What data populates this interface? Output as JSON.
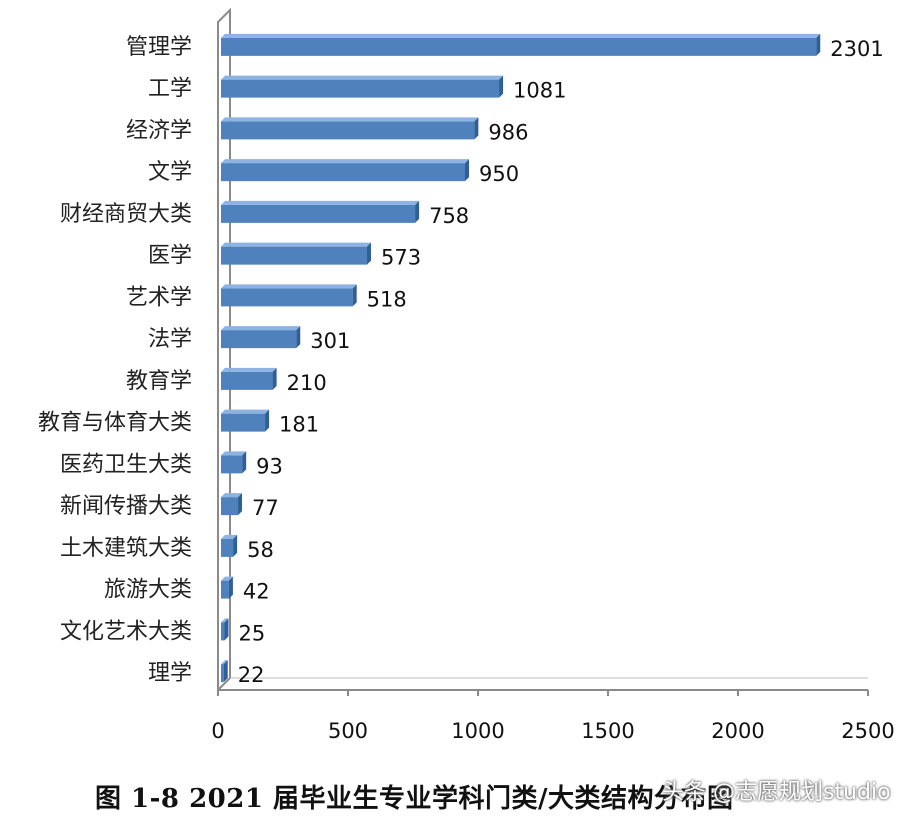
{
  "chart_data": {
    "type": "bar",
    "orientation": "horizontal",
    "categories": [
      "管理学",
      "工学",
      "经济学",
      "文学",
      "财经商贸大类",
      "医学",
      "艺术学",
      "法学",
      "教育学",
      "教育与体育大类",
      "医药卫生大类",
      "新闻传播大类",
      "土木建筑大类",
      "旅游大类",
      "文化艺术大类",
      "理学"
    ],
    "values": [
      2301,
      1081,
      986,
      950,
      758,
      573,
      518,
      301,
      210,
      181,
      93,
      77,
      58,
      42,
      25,
      22
    ],
    "value_labels": [
      "2301",
      "1081",
      "986",
      "950",
      "758",
      "573",
      "518",
      "301",
      "210",
      "181",
      "93",
      "77",
      "58",
      "42",
      "25",
      "22"
    ],
    "xticks": [
      "0",
      "500",
      "1000",
      "1500",
      "2000",
      "2500"
    ],
    "xlim": [
      0,
      2500
    ],
    "grid": false,
    "bar_color": "#4f81bd",
    "bar_top_color": "#8db3e2",
    "bar_side_color": "#2f5f98"
  },
  "caption": "图 1-8    2021 届毕业生专业学科门类/大类结构分布图",
  "watermark": "头条 @志愿规划studio"
}
